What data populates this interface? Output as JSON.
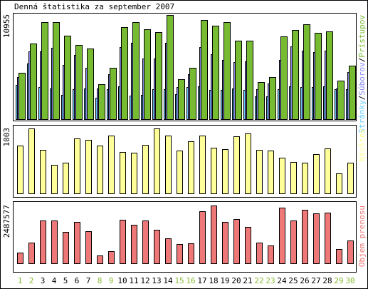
{
  "chart_data": [
    {
      "type": "bar",
      "title": "Denná štatistika za september 2007",
      "ylim": [
        0,
        10955
      ],
      "yticks": [
        10955
      ],
      "legend_separator": "/",
      "series": [
        {
          "name": "Stránky",
          "color": "#66ccff",
          "values": [
            3602,
            5853,
            3376,
            3226,
            2551,
            3151,
            3226,
            2251,
            3151,
            3452,
            2476,
            2551,
            3151,
            3151,
            2626,
            3376,
            3452,
            3076,
            3076,
            3226,
            3076,
            2401,
            2401,
            3151,
            3452,
            3376,
            3376,
            3452,
            3151,
            3151
          ]
        },
        {
          "name": "Súborov",
          "color": "#8888ee",
          "values": [
            4427,
            7128,
            7128,
            7503,
            5703,
            6753,
            5402,
            3226,
            4727,
            7578,
            8029,
            6378,
            6378,
            8029,
            3376,
            4727,
            7578,
            6828,
            6228,
            6003,
            6078,
            3151,
            3752,
            6228,
            7653,
            7203,
            7053,
            7203,
            3226,
            4952
          ]
        },
        {
          "name": "Prístupov",
          "color": "#77bb33",
          "values": [
            4877,
            7954,
            10205,
            10205,
            8779,
            7804,
            7428,
            3677,
            5402,
            9680,
            10205,
            9454,
            9154,
            10955,
            4202,
            5402,
            10430,
            9830,
            10205,
            8254,
            8254,
            3902,
            4427,
            8704,
            9379,
            9980,
            9079,
            9229,
            4052,
            5628
          ]
        }
      ]
    },
    {
      "type": "bar",
      "ylim": [
        0,
        1003
      ],
      "yticks": [
        1003
      ],
      "series": [
        {
          "name": "Návštev",
          "color": "#ffff99",
          "values": [
            738,
            1003,
            672,
            441,
            474,
            849,
            827,
            738,
            893,
            639,
            628,
            749,
            1003,
            893,
            661,
            805,
            893,
            705,
            683,
            882,
            926,
            672,
            661,
            551,
            485,
            474,
            606,
            694,
            309,
            474
          ]
        }
      ]
    },
    {
      "type": "bar",
      "ylim": [
        0,
        2487577
      ],
      "yticks": [
        2487577
      ],
      "categories": [
        "1",
        "2",
        "3",
        "4",
        "5",
        "6",
        "7",
        "8",
        "9",
        "10",
        "11",
        "12",
        "13",
        "14",
        "15",
        "16",
        "17",
        "18",
        "19",
        "20",
        "21",
        "22",
        "23",
        "24",
        "25",
        "26",
        "27",
        "28",
        "29",
        "30"
      ],
      "category_colors": [
        "#88bb33",
        "#88bb33",
        "#000000",
        "#000000",
        "#000000",
        "#000000",
        "#000000",
        "#88bb33",
        "#88bb33",
        "#000000",
        "#000000",
        "#000000",
        "#000000",
        "#000000",
        "#88bb33",
        "#88bb33",
        "#000000",
        "#000000",
        "#000000",
        "#000000",
        "#000000",
        "#88bb33",
        "#88bb33",
        "#000000",
        "#000000",
        "#000000",
        "#000000",
        "#000000",
        "#88bb33",
        "#88bb33"
      ],
      "series": [
        {
          "name": "Objem prenosu",
          "color": "#ee7777",
          "values": [
            460662,
            890613,
            1842650,
            1842650,
            1351277,
            1781228,
            1381989,
            337819,
            522084,
            1873361,
            1658385,
            1842650,
            1443411,
            1074891,
            829191,
            859902,
            2241895,
            2487577,
            1781228,
            1904072,
            1566252,
            890613,
            767771,
            2395443,
            1842650,
            2303316,
            2149758,
            2180469,
            614217,
            982756
          ]
        }
      ]
    }
  ]
}
